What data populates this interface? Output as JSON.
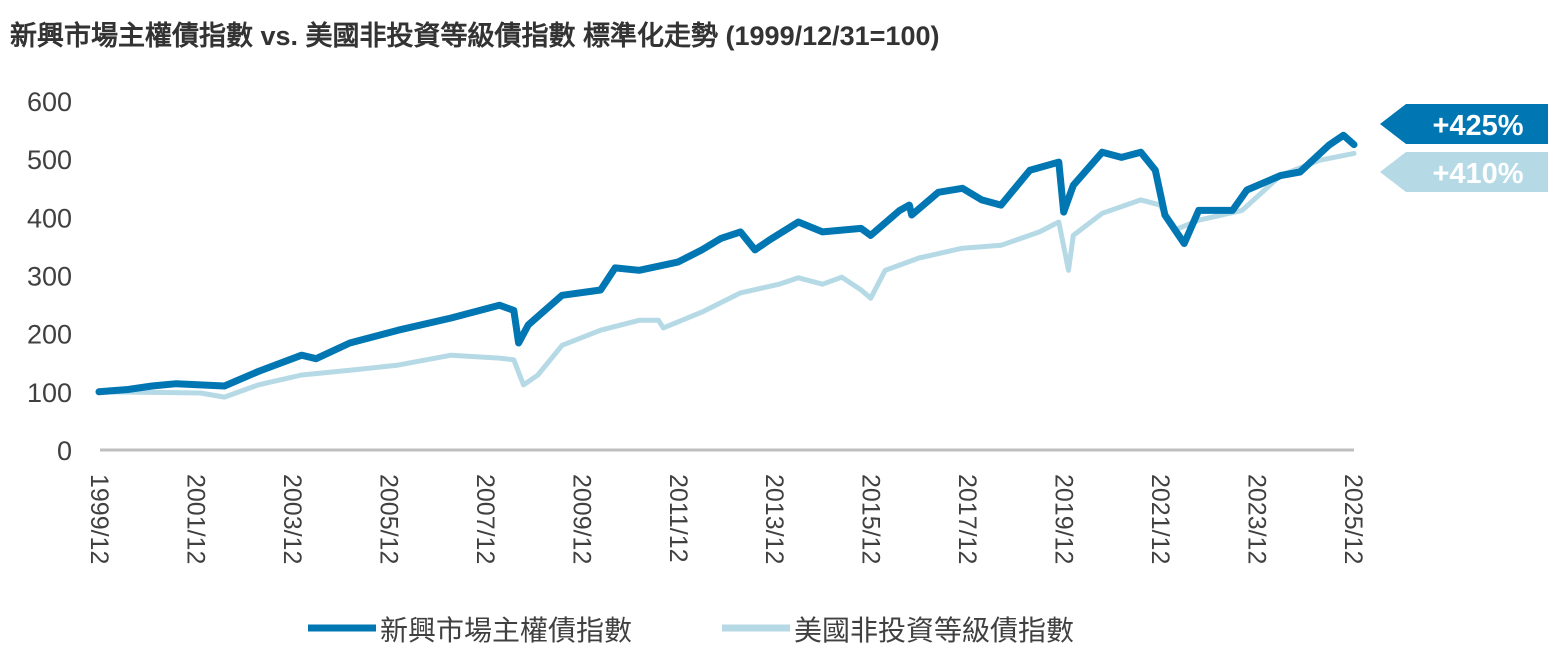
{
  "chart_data": {
    "type": "line",
    "title": "新興市場主權債指數 vs. 美國非投資等級債指數 標準化走勢 (1999/12/31=100)",
    "xlabel": "",
    "ylabel": "",
    "ylim": [
      0,
      600
    ],
    "xlim": [
      1999.92,
      2025.92
    ],
    "yticks": [
      "0",
      "100",
      "200",
      "300",
      "400",
      "500",
      "600"
    ],
    "xticks": [
      {
        "label": "1999/12",
        "x": 1999.92
      },
      {
        "label": "2001/12",
        "x": 2001.92
      },
      {
        "label": "2003/12",
        "x": 2003.92
      },
      {
        "label": "2005/12",
        "x": 2005.92
      },
      {
        "label": "2007/12",
        "x": 2007.92
      },
      {
        "label": "2009/12",
        "x": 2009.92
      },
      {
        "label": "2011/12",
        "x": 2011.92
      },
      {
        "label": "2013/12",
        "x": 2013.92
      },
      {
        "label": "2015/12",
        "x": 2015.92
      },
      {
        "label": "2017/12",
        "x": 2017.92
      },
      {
        "label": "2019/12",
        "x": 2019.92
      },
      {
        "label": "2021/12",
        "x": 2021.92
      },
      {
        "label": "2023/12",
        "x": 2023.92
      },
      {
        "label": "2025/12",
        "x": 2025.92
      }
    ],
    "grid": false,
    "legend": "bottom",
    "series": [
      {
        "name": "新興市場主權債指數",
        "color": "#0077b3",
        "end_label": "+425%",
        "points": [
          [
            1999.9,
            100
          ],
          [
            2000.5,
            104
          ],
          [
            2001.0,
            110
          ],
          [
            2001.5,
            114
          ],
          [
            2002.0,
            112
          ],
          [
            2002.5,
            110
          ],
          [
            2003.2,
            135
          ],
          [
            2004.1,
            163
          ],
          [
            2004.4,
            157
          ],
          [
            2005.1,
            184
          ],
          [
            2006.1,
            206
          ],
          [
            2007.2,
            227
          ],
          [
            2008.2,
            249
          ],
          [
            2008.5,
            240
          ],
          [
            2008.6,
            184
          ],
          [
            2008.8,
            215
          ],
          [
            2009.5,
            266
          ],
          [
            2010.3,
            275
          ],
          [
            2010.6,
            313
          ],
          [
            2011.1,
            309
          ],
          [
            2011.9,
            323
          ],
          [
            2012.4,
            344
          ],
          [
            2012.8,
            364
          ],
          [
            2013.2,
            375
          ],
          [
            2013.5,
            344
          ],
          [
            2013.8,
            361
          ],
          [
            2014.4,
            392
          ],
          [
            2014.9,
            375
          ],
          [
            2015.7,
            381
          ],
          [
            2015.9,
            369
          ],
          [
            2016.5,
            412
          ],
          [
            2016.7,
            421
          ],
          [
            2016.75,
            404
          ],
          [
            2017.3,
            443
          ],
          [
            2017.8,
            450
          ],
          [
            2018.2,
            430
          ],
          [
            2018.6,
            421
          ],
          [
            2019.2,
            481
          ],
          [
            2019.8,
            495
          ],
          [
            2019.9,
            409
          ],
          [
            2020.1,
            455
          ],
          [
            2020.7,
            512
          ],
          [
            2021.1,
            503
          ],
          [
            2021.5,
            512
          ],
          [
            2021.8,
            481
          ],
          [
            2022.0,
            404
          ],
          [
            2022.4,
            355
          ],
          [
            2022.7,
            412
          ],
          [
            2023.4,
            412
          ],
          [
            2023.7,
            447
          ],
          [
            2024.4,
            472
          ],
          [
            2024.8,
            478
          ],
          [
            2025.4,
            524
          ],
          [
            2025.7,
            541
          ],
          [
            2025.92,
            525
          ]
        ]
      },
      {
        "name": "美國非投資等級債指數",
        "color": "#b5dae6",
        "end_label": "+410%",
        "points": [
          [
            1999.9,
            100
          ],
          [
            2001.0,
            99
          ],
          [
            2002.0,
            98
          ],
          [
            2002.5,
            91
          ],
          [
            2003.2,
            112
          ],
          [
            2004.1,
            129
          ],
          [
            2005.1,
            137
          ],
          [
            2006.1,
            146
          ],
          [
            2007.2,
            163
          ],
          [
            2008.2,
            158
          ],
          [
            2008.5,
            155
          ],
          [
            2008.7,
            112
          ],
          [
            2009.0,
            129
          ],
          [
            2009.5,
            180
          ],
          [
            2010.3,
            206
          ],
          [
            2011.1,
            223
          ],
          [
            2011.5,
            223
          ],
          [
            2011.6,
            210
          ],
          [
            2012.4,
            237
          ],
          [
            2013.2,
            270
          ],
          [
            2014.0,
            285
          ],
          [
            2014.4,
            296
          ],
          [
            2014.9,
            285
          ],
          [
            2015.3,
            297
          ],
          [
            2015.7,
            275
          ],
          [
            2015.9,
            261
          ],
          [
            2016.2,
            309
          ],
          [
            2016.9,
            330
          ],
          [
            2017.8,
            347
          ],
          [
            2018.6,
            352
          ],
          [
            2019.4,
            375
          ],
          [
            2019.8,
            392
          ],
          [
            2020.0,
            309
          ],
          [
            2020.1,
            369
          ],
          [
            2020.7,
            407
          ],
          [
            2021.5,
            430
          ],
          [
            2021.9,
            421
          ],
          [
            2022.2,
            378
          ],
          [
            2022.7,
            395
          ],
          [
            2023.6,
            412
          ],
          [
            2024.4,
            472
          ],
          [
            2025.2,
            498
          ],
          [
            2025.92,
            510
          ]
        ]
      }
    ]
  }
}
